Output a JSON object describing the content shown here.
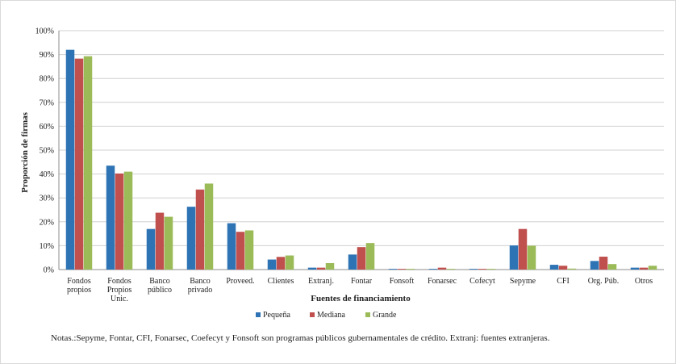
{
  "chart_data": {
    "type": "bar",
    "xlabel": "Fuentes de financiamiento",
    "ylabel": "Proporción de firmas",
    "ylim": [
      0,
      100
    ],
    "yticks": [
      "0%",
      "10%",
      "20%",
      "30%",
      "40%",
      "50%",
      "60%",
      "70%",
      "80%",
      "90%",
      "100%"
    ],
    "grid": true,
    "legend_position": "bottom",
    "categories": [
      [
        "Fondos",
        "propios"
      ],
      [
        "Fondos",
        "Propios",
        "Unic."
      ],
      [
        "Banco",
        "público"
      ],
      [
        "Banco",
        "privado"
      ],
      [
        "Proveed."
      ],
      [
        "Clientes"
      ],
      [
        "Extranj."
      ],
      [
        "Fontar"
      ],
      [
        "Fonsoft"
      ],
      [
        "Fonarsec"
      ],
      [
        "Cofecyt"
      ],
      [
        "Sepyme"
      ],
      [
        "CFI"
      ],
      [
        "Org. Púb."
      ],
      [
        "Otros"
      ]
    ],
    "series": [
      {
        "name": "Pequeña",
        "color": "#2e74b5",
        "values": [
          92,
          43.5,
          17,
          26.3,
          19.4,
          4.2,
          0.8,
          6.3,
          0.3,
          0.3,
          0.3,
          10.1,
          2,
          3.6,
          0.8
        ]
      },
      {
        "name": "Mediana",
        "color": "#c0504d",
        "values": [
          88.3,
          40.2,
          23.8,
          33.5,
          15.8,
          5.3,
          0.8,
          9.4,
          0.3,
          0.8,
          0.3,
          17,
          1.6,
          5.4,
          0.8
        ]
      },
      {
        "name": "Grande",
        "color": "#9bbb59",
        "values": [
          89.3,
          41,
          22.1,
          36,
          16.4,
          5.9,
          2.7,
          11.1,
          0.3,
          0.3,
          0.3,
          10,
          0.4,
          2.3,
          1.6
        ]
      }
    ]
  },
  "note": "Notas.:Sepyme, Fontar, CFI, Fonarsec, Coefecyt y Fonsoft son programas públicos gubernamentales de crédito. Extranj: fuentes extranjeras."
}
